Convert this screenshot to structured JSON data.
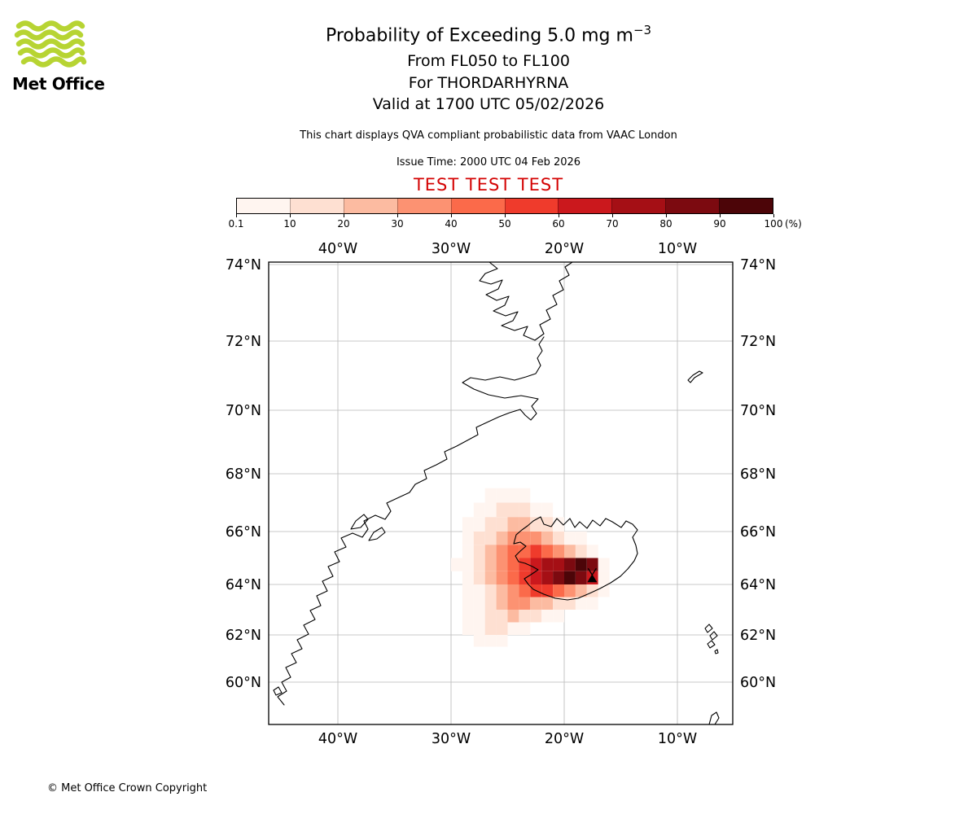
{
  "header": {
    "logo_text": "Met Office",
    "logo_green": "#b7d433",
    "title_main": "Probability of Exceeding 5.0 mg m",
    "title_sup": "−3",
    "subtitle_fl": "From FL050 to FL100",
    "subtitle_for": "For THORDARHYRNA",
    "subtitle_valid": "Valid at 1700 UTC 05/02/2026",
    "note": "This chart displays QVA compliant probabilistic data from VAAC London",
    "issue_time": "Issue Time: 2000 UTC 04 Feb 2026",
    "test_banner": "TEST TEST TEST",
    "test_color": "#d40404"
  },
  "colorbar": {
    "tick_labels": [
      "0.1",
      "10",
      "20",
      "30",
      "40",
      "50",
      "60",
      "70",
      "80",
      "90",
      "100"
    ],
    "unit_label": "(%)",
    "colors": [
      "#fff5f0",
      "#fee0d2",
      "#fcbba1",
      "#fc9272",
      "#fb6a4a",
      "#ef3b2c",
      "#cb181d",
      "#a50f15",
      "#7c0a10",
      "#4c0508"
    ]
  },
  "map": {
    "lon_ticks": [
      {
        "degW": 40,
        "label": "40°W"
      },
      {
        "degW": 30,
        "label": "30°W"
      },
      {
        "degW": 20,
        "label": "20°W"
      },
      {
        "degW": 10,
        "label": "10°W"
      }
    ],
    "lat_ticks": [
      {
        "degN": 74,
        "label": "74°N"
      },
      {
        "degN": 72,
        "label": "72°N"
      },
      {
        "degN": 70,
        "label": "70°N"
      },
      {
        "degN": 68,
        "label": "68°N"
      },
      {
        "degN": 66,
        "label": "66°N"
      },
      {
        "degN": 64,
        "label": "64°N"
      },
      {
        "degN": 62,
        "label": "62°N"
      },
      {
        "degN": 60,
        "label": "60°N"
      }
    ],
    "volcano": {
      "name": "THORDARHYRNA",
      "degW": 17.53,
      "degN": 64.27
    }
  },
  "chart_data": {
    "type": "heatmap",
    "title": "Probability of Exceeding 5.0 mg m⁻³",
    "layer": "FL050 to FL100",
    "volcano": "THORDARHYRNA",
    "valid_time": "1700 UTC 05/02/2026",
    "issue_time": "2000 UTC 04 Feb 2026",
    "source": "QVA compliant probabilistic data from VAAC London",
    "units": "%",
    "scale_breaks_pct": [
      0.1,
      10,
      20,
      30,
      40,
      50,
      60,
      70,
      80,
      90,
      100
    ],
    "axes": {
      "lon_labels_degW": [
        40,
        30,
        20,
        10
      ],
      "lat_labels_degN": [
        74,
        72,
        70,
        68,
        66,
        64,
        62,
        60
      ]
    },
    "grid": {
      "lon_west_edge_degW": 30.0,
      "lon_step_deg": 1.0,
      "lat_north_edge_degN": 67.5,
      "lat_step_deg": 0.5,
      "n_cols": 17,
      "n_rows": 12
    },
    "bucket_legend": "0 = below 0.1%; bucket k (1-10) = probability between scale_breaks_pct[k-1] and scale_breaks_pct[k]",
    "probability_bucket_grid": [
      [
        0,
        0,
        0,
        1,
        1,
        1,
        1,
        0,
        0,
        0,
        0,
        0,
        0,
        0,
        0,
        0,
        0
      ],
      [
        0,
        0,
        1,
        1,
        2,
        2,
        2,
        1,
        1,
        0,
        0,
        0,
        0,
        0,
        0,
        0,
        0
      ],
      [
        0,
        1,
        1,
        2,
        2,
        3,
        3,
        2,
        2,
        1,
        0,
        0,
        0,
        0,
        0,
        0,
        0
      ],
      [
        0,
        1,
        2,
        2,
        3,
        4,
        4,
        4,
        3,
        2,
        1,
        1,
        0,
        0,
        0,
        0,
        0
      ],
      [
        0,
        1,
        2,
        3,
        4,
        5,
        5,
        6,
        5,
        4,
        3,
        2,
        1,
        0,
        0,
        0,
        0
      ],
      [
        1,
        1,
        2,
        3,
        4,
        5,
        6,
        7,
        8,
        8,
        9,
        10,
        9,
        1,
        0,
        0,
        0
      ],
      [
        0,
        1,
        2,
        3,
        4,
        5,
        6,
        7,
        8,
        9,
        10,
        9,
        7,
        1,
        0,
        0,
        0
      ],
      [
        0,
        1,
        1,
        2,
        3,
        4,
        5,
        6,
        6,
        5,
        4,
        3,
        2,
        1,
        0,
        0,
        0
      ],
      [
        0,
        1,
        1,
        2,
        3,
        4,
        4,
        3,
        3,
        2,
        2,
        1,
        1,
        0,
        0,
        0,
        0
      ],
      [
        0,
        1,
        1,
        2,
        2,
        3,
        2,
        2,
        1,
        1,
        0,
        0,
        0,
        0,
        0,
        0,
        0
      ],
      [
        0,
        1,
        1,
        2,
        2,
        1,
        1,
        0,
        0,
        0,
        0,
        0,
        0,
        0,
        0,
        0,
        0
      ],
      [
        0,
        0,
        1,
        1,
        1,
        0,
        0,
        0,
        0,
        0,
        0,
        0,
        0,
        0,
        0,
        0,
        0
      ]
    ]
  },
  "footer": {
    "copyright": "© Met Office Crown Copyright"
  }
}
